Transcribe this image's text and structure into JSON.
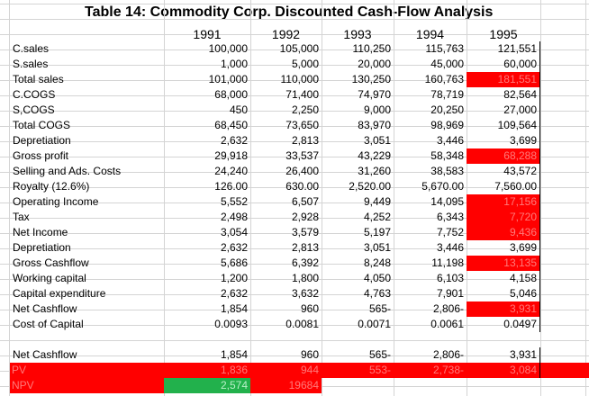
{
  "title": "Table 14: Commodity Corp. Discounted Cash-Flow Analysis",
  "years": [
    "1991",
    "1992",
    "1993",
    "1994",
    "1995"
  ],
  "colors": {
    "highlight": "#ff0000",
    "npv_highlight": "#22b14c",
    "grid": "#d4d4d4"
  },
  "rows": [
    {
      "label": "C.sales",
      "values": [
        "100,000",
        "105,000",
        "110,250",
        "115,763",
        "121,551"
      ]
    },
    {
      "label": "S.sales",
      "values": [
        "1,000",
        "5,000",
        "20,000",
        "45,000",
        "60,000"
      ]
    },
    {
      "label": "Total sales",
      "values": [
        "101,000",
        "110,000",
        "130,250",
        "160,763",
        "181,551"
      ]
    },
    {
      "label": "C.COGS",
      "values": [
        "68,000",
        "71,400",
        "74,970",
        "78,719",
        "82,564"
      ]
    },
    {
      "label": "S,COGS",
      "values": [
        "450",
        "2,250",
        "9,000",
        "20,250",
        "27,000"
      ]
    },
    {
      "label": "Total COGS",
      "values": [
        "68,450",
        "73,650",
        "83,970",
        "98,969",
        "109,564"
      ]
    },
    {
      "label": "Depretiation",
      "values": [
        "2,632",
        "2,813",
        "3,051",
        "3,446",
        "3,699"
      ]
    },
    {
      "label": "Gross profit",
      "values": [
        "29,918",
        "33,537",
        "43,229",
        "58,348",
        "68,288"
      ]
    },
    {
      "label": "Selling and Ads. Costs",
      "values": [
        "24,240",
        "26,400",
        "31,260",
        "38,583",
        "43,572"
      ]
    },
    {
      "label": "Royalty (12.6%)",
      "values": [
        "126.00",
        "630.00",
        "2,520.00",
        "5,670.00",
        "7,560.00"
      ]
    },
    {
      "label": "Operating Income",
      "values": [
        "5,552",
        "6,507",
        "9,449",
        "14,095",
        "17,156"
      ]
    },
    {
      "label": "Tax",
      "values": [
        "2,498",
        "2,928",
        "4,252",
        "6,343",
        "7,720"
      ]
    },
    {
      "label": "Net Income",
      "values": [
        "3,054",
        "3,579",
        "5,197",
        "7,752",
        "9,436"
      ]
    },
    {
      "label": "Depretiation",
      "values": [
        "2,632",
        "2,813",
        "3,051",
        "3,446",
        "3,699"
      ]
    },
    {
      "label": "Gross Cashflow",
      "values": [
        "5,686",
        "6,392",
        "8,248",
        "11,198",
        "13,135"
      ]
    },
    {
      "label": "Working capital",
      "values": [
        "1,200",
        "1,800",
        "4,050",
        "6,103",
        "4,158"
      ]
    },
    {
      "label": "Capital expenditure",
      "values": [
        "2,632",
        "3,632",
        "4,763",
        "7,901",
        "5,046"
      ]
    },
    {
      "label": "Net Cashflow",
      "values": [
        "1,854",
        "960",
        "565-",
        "2,806-",
        "3,931"
      ]
    },
    {
      "label": "Cost of Capital",
      "values": [
        "0.0093",
        "0.0081",
        "0.0071",
        "0.0061",
        "0.0497"
      ]
    }
  ],
  "highlighted_cells": [
    [
      2,
      4
    ],
    [
      7,
      4
    ],
    [
      10,
      4
    ],
    [
      11,
      4
    ],
    [
      12,
      4
    ],
    [
      14,
      4
    ],
    [
      17,
      4
    ]
  ],
  "bottom_rows": [
    {
      "label": "Net Cashflow",
      "values": [
        "1,854",
        "960",
        "565-",
        "2,806-",
        "3,931"
      ]
    },
    {
      "label": "PV",
      "values": [
        "1,836",
        "944",
        "553-",
        "2,738-",
        "3,084"
      ]
    },
    {
      "label": "NPV",
      "values": [
        "2,574",
        "19684",
        "",
        "",
        ""
      ]
    }
  ]
}
